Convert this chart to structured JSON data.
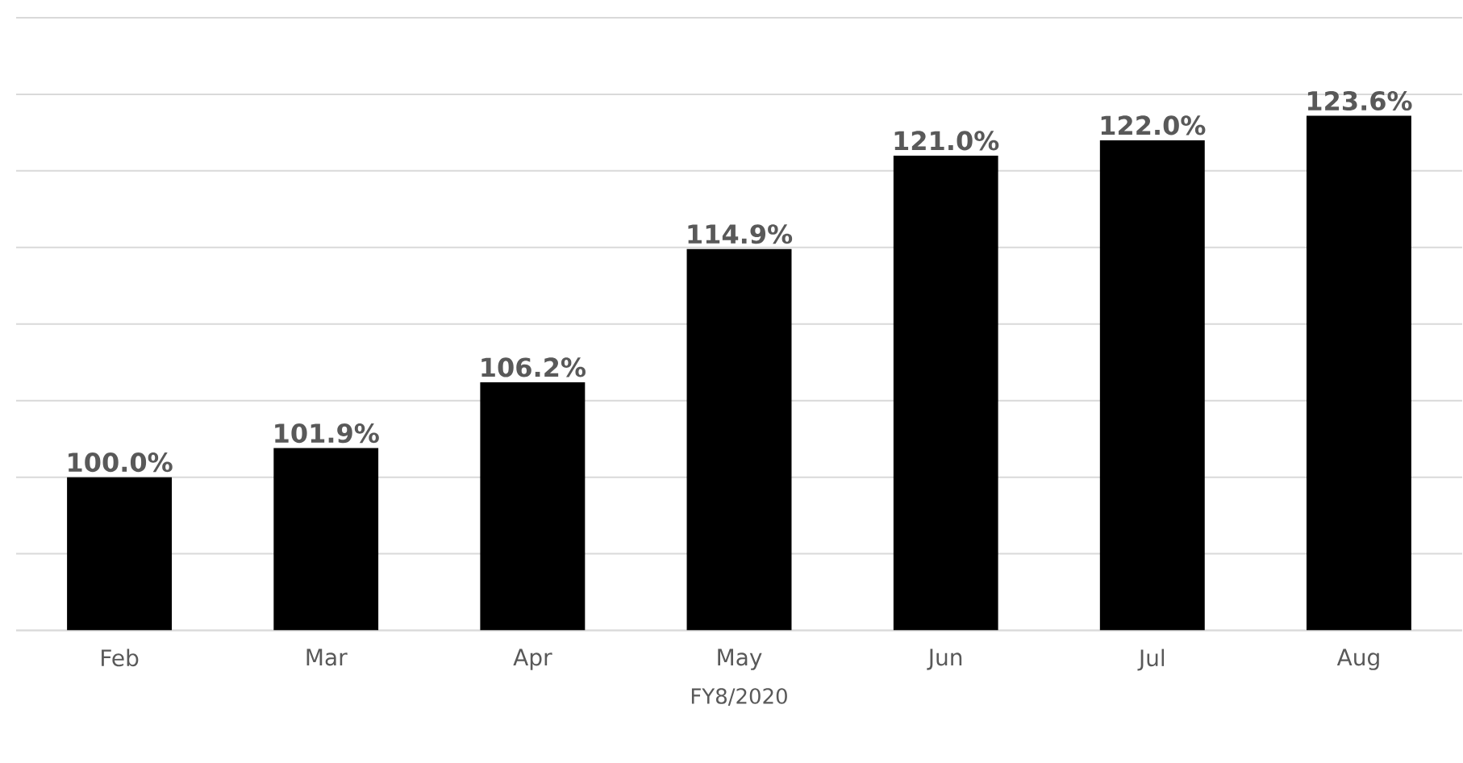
{
  "chart_data": {
    "type": "bar",
    "xlabel": "FY8/2020",
    "categories": [
      "Feb",
      "Mar",
      "Apr",
      "May",
      "Jun",
      "Jul",
      "Aug"
    ],
    "values": [
      100.0,
      101.9,
      106.2,
      114.9,
      121.0,
      122.0,
      123.6
    ],
    "value_labels": [
      "100.0%",
      "101.9%",
      "106.2%",
      "114.9%",
      "121.0%",
      "122.0%",
      "123.6%"
    ],
    "color": "#000000",
    "ylim": [
      90,
      130
    ],
    "yticks": [
      {
        "value": 90,
        "label": null
      },
      {
        "value": 95,
        "label": null
      },
      {
        "value": 100,
        "label": null
      },
      {
        "value": 105,
        "label": null
      },
      {
        "value": 110,
        "label": null
      },
      {
        "value": 115,
        "label": null
      },
      {
        "value": 120,
        "label": null
      },
      {
        "value": 125,
        "label": null
      },
      {
        "value": 130,
        "label": null
      }
    ],
    "grid": "y",
    "tick_labels": "x"
  }
}
